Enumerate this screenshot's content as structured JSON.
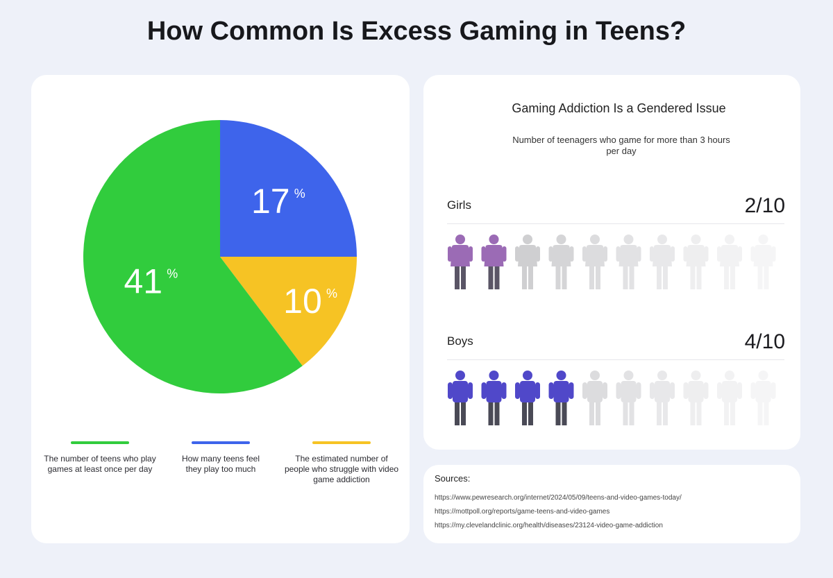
{
  "title": "How Common Is Excess Gaming in Teens?",
  "chart_data": [
    {
      "type": "pie",
      "slices": [
        {
          "label": "How many teens feel they play too much",
          "value": 17,
          "display": "17",
          "unit": "%",
          "color": "#3e64eb"
        },
        {
          "label": "The estimated number of people who struggle with video game addiction",
          "value": 10,
          "display": "10",
          "unit": "%",
          "color": "#f6c324"
        },
        {
          "label": "The number of teens who play games at least once per day",
          "value": 41,
          "display": "41",
          "unit": "%",
          "color": "#31cc3d"
        }
      ],
      "legend": [
        {
          "text": "The number of teens who play games at least once per day",
          "color": "#31cc3d"
        },
        {
          "text": "How many teens feel they play too much",
          "color": "#3e64eb"
        },
        {
          "text": "The estimated number of people who struggle with video game addiction",
          "color": "#f6c324"
        }
      ]
    },
    {
      "type": "pictogram",
      "title": "Gaming Addiction Is a Gendered Issue",
      "subtitle": "Number of teenagers who game for more than 3 hours per day",
      "rows": [
        {
          "name": "Girls",
          "ratio": "2/10",
          "filled": 2,
          "total": 10,
          "color": "#9b6bb5",
          "figure": "female"
        },
        {
          "name": "Boys",
          "ratio": "4/10",
          "filled": 4,
          "total": 10,
          "color": "#5048c9",
          "figure": "male"
        }
      ]
    }
  ],
  "sources": {
    "title": "Sources:",
    "links": [
      "https://www.pewresearch.org/internet/2024/05/09/teens-and-video-games-today/",
      "https://mottpoll.org/reports/game-teens-and-video-games",
      "https://my.clevelandclinic.org/health/diseases/23124-video-game-addiction"
    ]
  }
}
